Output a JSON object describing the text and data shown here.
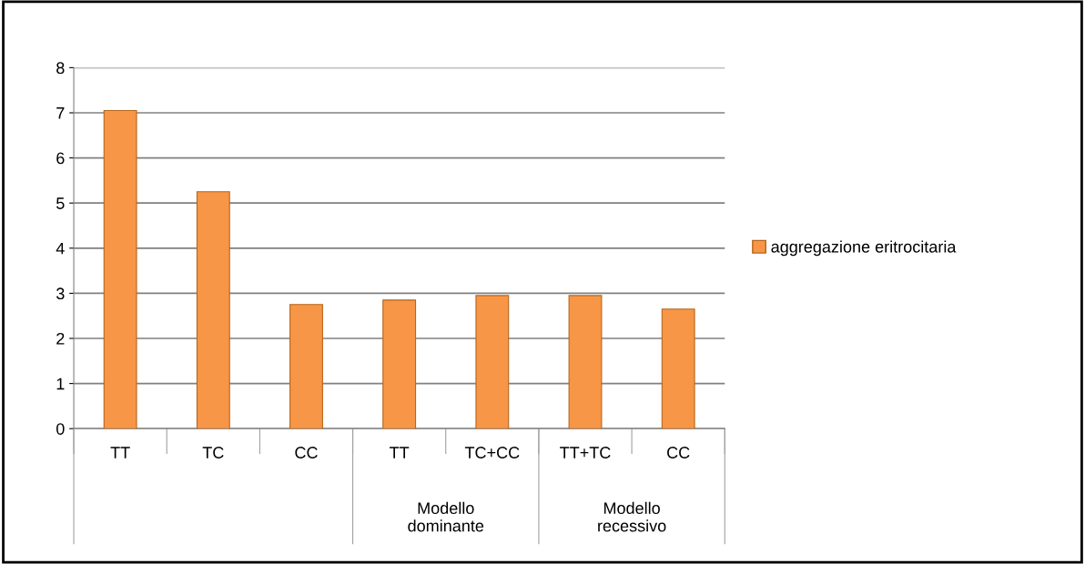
{
  "chart_data": {
    "type": "bar",
    "categories": [
      "TT",
      "TC",
      "CC",
      "TT",
      "TC+CC",
      "TT+TC",
      "CC"
    ],
    "series": [
      {
        "name": "aggregazione eritrocitaria",
        "color": "#f79646",
        "values": [
          7.05,
          5.25,
          2.75,
          2.85,
          2.95,
          2.95,
          2.65
        ]
      }
    ],
    "annotations": [
      "Modello dominante",
      "Modello recessivo"
    ],
    "ylim": [
      0,
      8
    ],
    "yticks": [
      0,
      1,
      2,
      3,
      4,
      5,
      6,
      7,
      8
    ],
    "grid": "y",
    "legend": "right"
  }
}
